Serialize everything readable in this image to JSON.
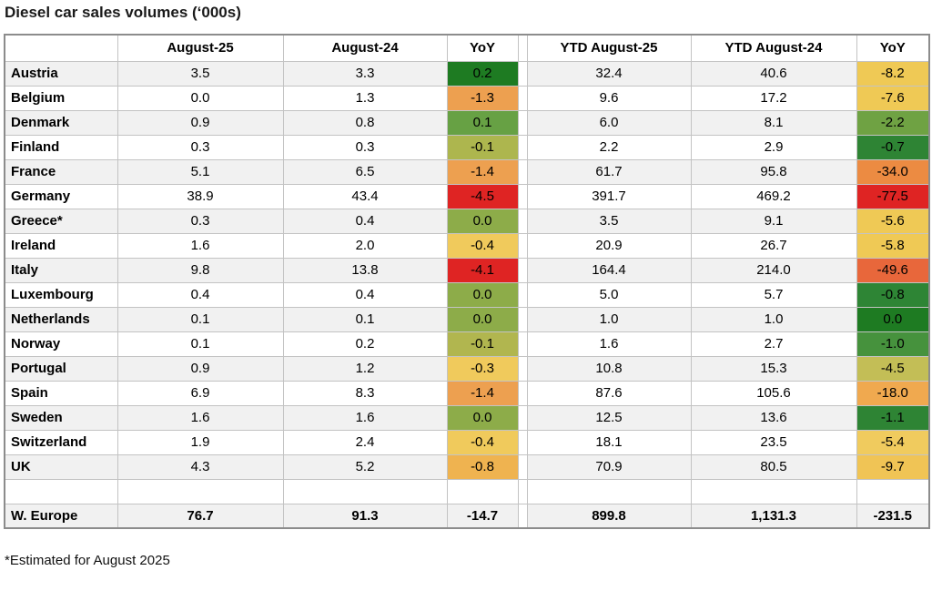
{
  "title": "Diesel car sales volumes (‘000s)",
  "footnote": "*Estimated for August 2025",
  "colors": {
    "stripe_row": "#f1f1f1",
    "grid_line": "#c3c3c3",
    "outer_border": "#8c8c8c"
  },
  "chart_data": {
    "type": "table",
    "title": "Diesel car sales volumes (‘000s)",
    "columns": [
      "",
      "August-25",
      "August-24",
      "YoY",
      "YTD August-25",
      "YTD August-24",
      "YoY"
    ],
    "rows": [
      {
        "label": "Austria",
        "values": [
          "3.5",
          "3.3",
          "0.2",
          "32.4",
          "40.6",
          "-8.2"
        ],
        "yoy_colors": [
          "#1e7b22",
          "#efc955"
        ]
      },
      {
        "label": "Belgium",
        "values": [
          "0.0",
          "1.3",
          "-1.3",
          "9.6",
          "17.2",
          "-7.6"
        ],
        "yoy_colors": [
          "#eda050",
          "#efc955"
        ]
      },
      {
        "label": "Denmark",
        "values": [
          "0.9",
          "0.8",
          "0.1",
          "6.0",
          "8.1",
          "-2.2"
        ],
        "yoy_colors": [
          "#67a144",
          "#6fa243"
        ]
      },
      {
        "label": "Finland",
        "values": [
          "0.3",
          "0.3",
          "-0.1",
          "2.2",
          "2.9",
          "-0.7"
        ],
        "yoy_colors": [
          "#adb64e",
          "#2e8434"
        ]
      },
      {
        "label": "France",
        "values": [
          "5.1",
          "6.5",
          "-1.4",
          "61.7",
          "95.8",
          "-34.0"
        ],
        "yoy_colors": [
          "#eda050",
          "#ec8b42"
        ]
      },
      {
        "label": "Germany",
        "values": [
          "38.9",
          "43.4",
          "-4.5",
          "391.7",
          "469.2",
          "-77.5"
        ],
        "yoy_colors": [
          "#df2423",
          "#df2423"
        ]
      },
      {
        "label": "Greece*",
        "values": [
          "0.3",
          "0.4",
          "0.0",
          "3.5",
          "9.1",
          "-5.6"
        ],
        "yoy_colors": [
          "#8dac49",
          "#efc955"
        ]
      },
      {
        "label": "Ireland",
        "values": [
          "1.6",
          "2.0",
          "-0.4",
          "20.9",
          "26.7",
          "-5.8"
        ],
        "yoy_colors": [
          "#f0ca5c",
          "#efc955"
        ]
      },
      {
        "label": "Italy",
        "values": [
          "9.8",
          "13.8",
          "-4.1",
          "164.4",
          "214.0",
          "-49.6"
        ],
        "yoy_colors": [
          "#df2423",
          "#e8673b"
        ]
      },
      {
        "label": "Luxembourg",
        "values": [
          "0.4",
          "0.4",
          "0.0",
          "5.0",
          "5.7",
          "-0.8"
        ],
        "yoy_colors": [
          "#8dac49",
          "#2e8535"
        ]
      },
      {
        "label": "Netherlands",
        "values": [
          "0.1",
          "0.1",
          "0.0",
          "1.0",
          "1.0",
          "0.0"
        ],
        "yoy_colors": [
          "#8dac49",
          "#1e7b22"
        ]
      },
      {
        "label": "Norway",
        "values": [
          "0.1",
          "0.2",
          "-0.1",
          "1.6",
          "2.7",
          "-1.0"
        ],
        "yoy_colors": [
          "#b1b64f",
          "#46923d"
        ]
      },
      {
        "label": "Portugal",
        "values": [
          "0.9",
          "1.2",
          "-0.3",
          "10.8",
          "15.3",
          "-4.5"
        ],
        "yoy_colors": [
          "#f0ca5c",
          "#c3be56"
        ]
      },
      {
        "label": "Spain",
        "values": [
          "6.9",
          "8.3",
          "-1.4",
          "87.6",
          "105.6",
          "-18.0"
        ],
        "yoy_colors": [
          "#eda050",
          "#f0a94f"
        ]
      },
      {
        "label": "Sweden",
        "values": [
          "1.6",
          "1.6",
          "0.0",
          "12.5",
          "13.6",
          "-1.1"
        ],
        "yoy_colors": [
          "#8dac49",
          "#2e8434"
        ]
      },
      {
        "label": "Switzerland",
        "values": [
          "1.9",
          "2.4",
          "-0.4",
          "18.1",
          "23.5",
          "-5.4"
        ],
        "yoy_colors": [
          "#f0ca5c",
          "#f0cb5e"
        ]
      },
      {
        "label": "UK",
        "values": [
          "4.3",
          "5.2",
          "-0.8",
          "70.9",
          "80.5",
          "-9.7"
        ],
        "yoy_colors": [
          "#efb350",
          "#f0c455"
        ]
      }
    ],
    "total_row": {
      "label": "W. Europe",
      "values": [
        "76.7",
        "91.3",
        "-14.7",
        "899.8",
        "1,131.3",
        "-231.5"
      ]
    },
    "footnote": "*Estimated for August 2025"
  }
}
